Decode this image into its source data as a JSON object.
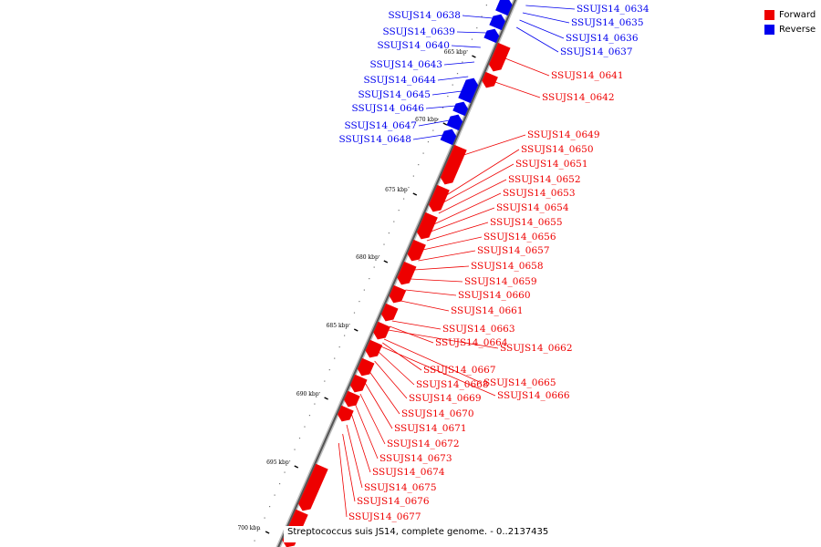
{
  "legend": {
    "forward_label": "Forward",
    "reverse_label": "Reverse",
    "forward_color": "#ee0000",
    "reverse_color": "#0000ee"
  },
  "caption": "Streptococcus suis JS14, complete genome. - 0..2137435",
  "ticks": [
    "665 kbp",
    "670 kbp",
    "675 kbp",
    "680 kbp",
    "685 kbp",
    "690 kbp",
    "695 kbp",
    "700 kbp"
  ],
  "reverse_genes": [
    {
      "label": "SSUJS14_0634"
    },
    {
      "label": "SSUJS14_0635"
    },
    {
      "label": "SSUJS14_0636"
    },
    {
      "label": "SSUJS14_0637"
    },
    {
      "label": "SSUJS14_0638"
    },
    {
      "label": "SSUJS14_0639"
    },
    {
      "label": "SSUJS14_0640"
    },
    {
      "label": "SSUJS14_0643"
    },
    {
      "label": "SSUJS14_0644"
    },
    {
      "label": "SSUJS14_0645"
    },
    {
      "label": "SSUJS14_0646"
    },
    {
      "label": "SSUJS14_0647"
    },
    {
      "label": "SSUJS14_0648"
    }
  ],
  "forward_genes": [
    {
      "label": "SSUJS14_0641"
    },
    {
      "label": "SSUJS14_0642"
    },
    {
      "label": "SSUJS14_0649"
    },
    {
      "label": "SSUJS14_0650"
    },
    {
      "label": "SSUJS14_0651"
    },
    {
      "label": "SSUJS14_0652"
    },
    {
      "label": "SSUJS14_0653"
    },
    {
      "label": "SSUJS14_0654"
    },
    {
      "label": "SSUJS14_0655"
    },
    {
      "label": "SSUJS14_0656"
    },
    {
      "label": "SSUJS14_0657"
    },
    {
      "label": "SSUJS14_0658"
    },
    {
      "label": "SSUJS14_0659"
    },
    {
      "label": "SSUJS14_0660"
    },
    {
      "label": "SSUJS14_0661"
    },
    {
      "label": "SSUJS14_0662"
    },
    {
      "label": "SSUJS14_0663"
    },
    {
      "label": "SSUJS14_0664"
    },
    {
      "label": "SSUJS14_0665"
    },
    {
      "label": "SSUJS14_0666"
    },
    {
      "label": "SSUJS14_0667"
    },
    {
      "label": "SSUJS14_0668"
    },
    {
      "label": "SSUJS14_0669"
    },
    {
      "label": "SSUJS14_0670"
    },
    {
      "label": "SSUJS14_0671"
    },
    {
      "label": "SSUJS14_0672"
    },
    {
      "label": "SSUJS14_0673"
    },
    {
      "label": "SSUJS14_0674"
    },
    {
      "label": "SSUJS14_0675"
    },
    {
      "label": "SSUJS14_0676"
    },
    {
      "label": "SSUJS14_0677"
    }
  ]
}
